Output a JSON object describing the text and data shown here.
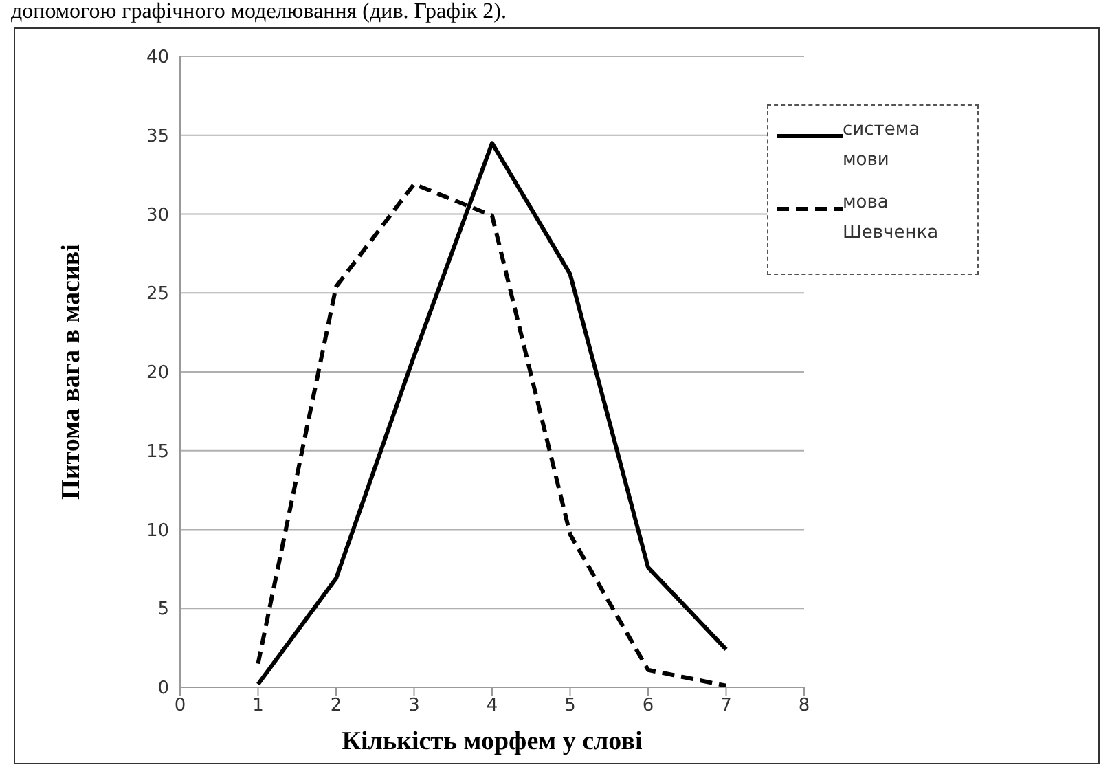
{
  "chart_data": {
    "type": "line",
    "xlabel": "Кількість морфем у слові",
    "ylabel": "Питома вага в масиві",
    "annotations": [
      "допомогою графічного моделювання (див. Графік 2)."
    ],
    "x": [
      1,
      2,
      3,
      4,
      5,
      6,
      7
    ],
    "series": [
      {
        "name": "система мови",
        "color": "#000000",
        "line_style": "solid",
        "values": [
          0.2,
          6.9,
          21,
          34.5,
          26.2,
          7.6,
          2.4
        ]
      },
      {
        "name": "мова Шевченка",
        "color": "#000000",
        "line_style": "dashed",
        "values": [
          1.5,
          25.4,
          31.9,
          29.9,
          9.7,
          1.1,
          0.1
        ]
      }
    ],
    "xlim": [
      0,
      8
    ],
    "xticks": [
      0,
      1,
      2,
      3,
      4,
      5,
      6,
      7,
      8
    ],
    "ylim": [
      0,
      40
    ],
    "yticks": [
      0,
      5,
      10,
      15,
      20,
      25,
      30,
      35,
      40
    ],
    "grid": "y",
    "legend": "top right",
    "marker": "none"
  }
}
